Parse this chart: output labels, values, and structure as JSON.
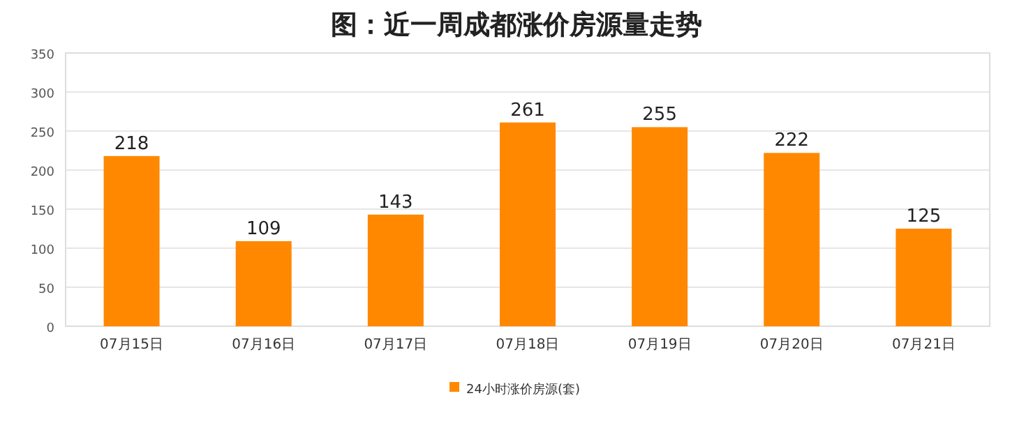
{
  "chart_data": {
    "type": "bar",
    "title": "图：近一周成都涨价房源量走势",
    "categories": [
      "07月15日",
      "07月16日",
      "07月17日",
      "07月18日",
      "07月19日",
      "07月20日",
      "07月21日"
    ],
    "series": [
      {
        "name": "24小时涨价房源(套)",
        "color": "#ff8800",
        "values": [
          218,
          109,
          143,
          261,
          255,
          222,
          125
        ]
      }
    ],
    "ylim": [
      0,
      350
    ],
    "yticks": [
      0,
      50,
      100,
      150,
      200,
      250,
      300,
      350
    ],
    "grid": "y",
    "legend": "bottom",
    "data_labels": true
  }
}
